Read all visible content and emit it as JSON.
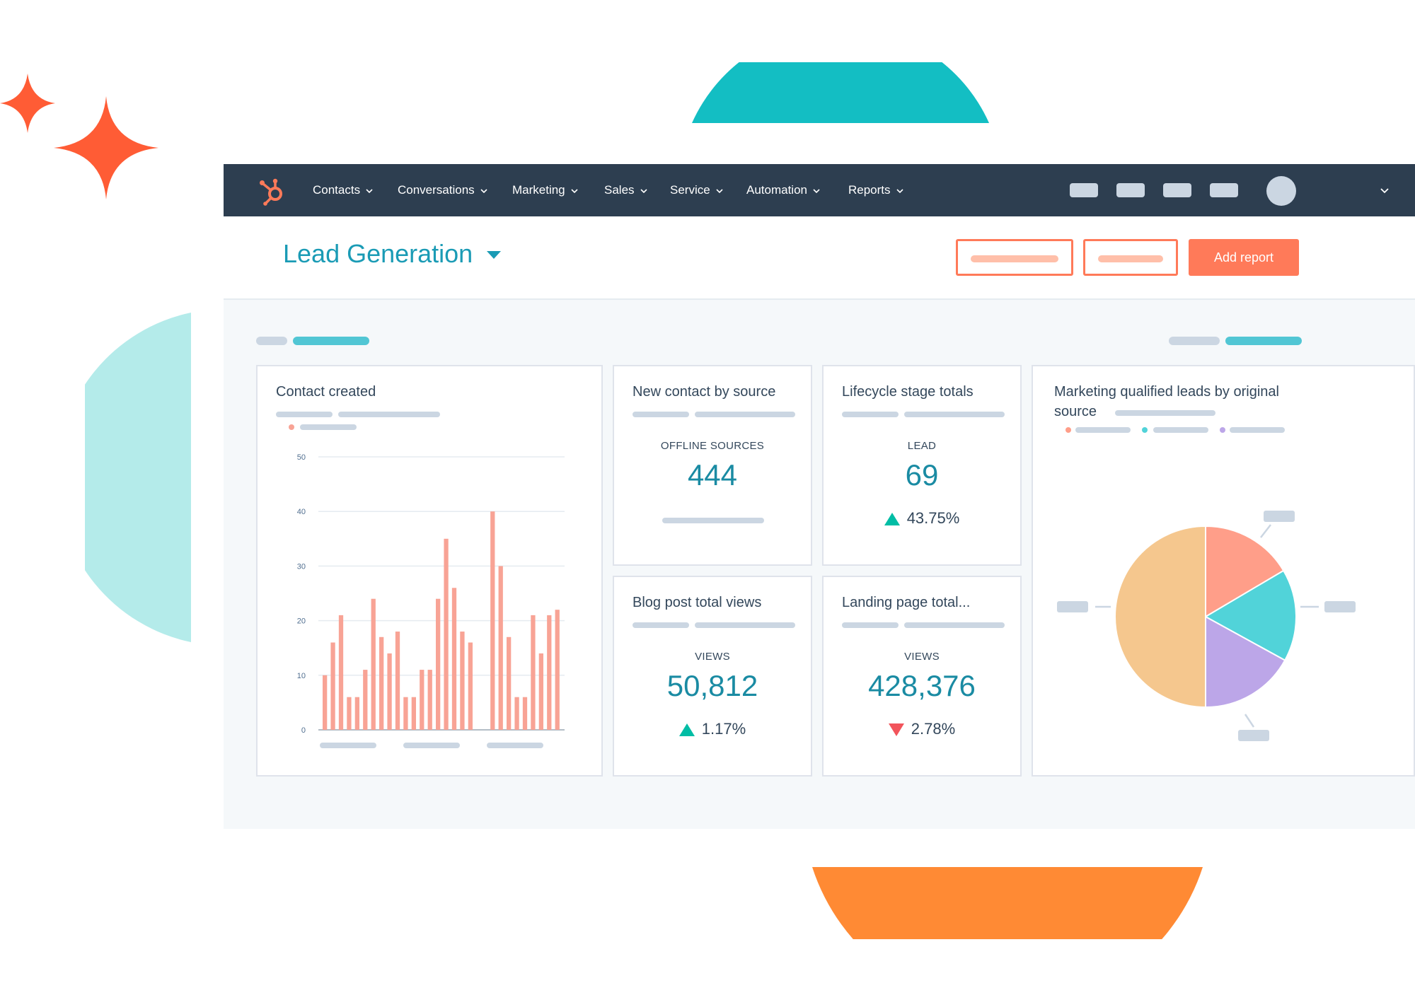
{
  "colors": {
    "nav_bg": "#2d3e50",
    "accent_orange": "#ff7a59",
    "teal": "#1a9bb5",
    "bar_color": "#f8a395",
    "up_color": "#00bda5",
    "down_color": "#f2545b"
  },
  "navbar": {
    "logo_icon": "hubspot-sprocket-icon",
    "items": [
      {
        "label": "Contacts"
      },
      {
        "label": "Conversations"
      },
      {
        "label": "Marketing"
      },
      {
        "label": "Sales"
      },
      {
        "label": "Service"
      },
      {
        "label": "Automation"
      },
      {
        "label": "Reports"
      }
    ]
  },
  "header": {
    "title": "Lead Generation",
    "add_report_label": "Add report"
  },
  "cards": {
    "contact_created": {
      "title": "Contact created"
    },
    "new_contact_by_source": {
      "title": "New contact by source",
      "label": "OFFLINE SOURCES",
      "value": "444"
    },
    "lifecycle_stage_totals": {
      "title": "Lifecycle stage totals",
      "label": "LEAD",
      "value": "69",
      "change": "43.75%",
      "direction": "up"
    },
    "blog_post_total_views": {
      "title": "Blog post total views",
      "label": "VIEWS",
      "value": "50,812",
      "change": "1.17%",
      "direction": "up"
    },
    "landing_page_total": {
      "title": "Landing page total...",
      "label": "VIEWS",
      "value": "428,376",
      "change": "2.78%",
      "direction": "down"
    },
    "mql_by_source": {
      "title_line1": "Marketing qualified leads by original",
      "title_line2": "source"
    }
  },
  "chart_data": [
    {
      "type": "bar",
      "ylim": [
        0,
        50
      ],
      "yticks": [
        "0",
        "10",
        "20",
        "30",
        "40",
        "50"
      ],
      "values": [
        10,
        16,
        21,
        6,
        6,
        11,
        24,
        17,
        14,
        18,
        6,
        6,
        11,
        11,
        24,
        35,
        26,
        18,
        16,
        40,
        30,
        17,
        6,
        6,
        21,
        14,
        21,
        22
      ],
      "group_starts": [
        0,
        19
      ]
    },
    {
      "type": "pie",
      "slices": [
        {
          "value": 50,
          "color": "#f5c78e"
        },
        {
          "value": 16.5,
          "color": "#ff9e89"
        },
        {
          "value": 16.5,
          "color": "#51d3d9"
        },
        {
          "value": 17,
          "color": "#bca6e8"
        }
      ]
    }
  ]
}
